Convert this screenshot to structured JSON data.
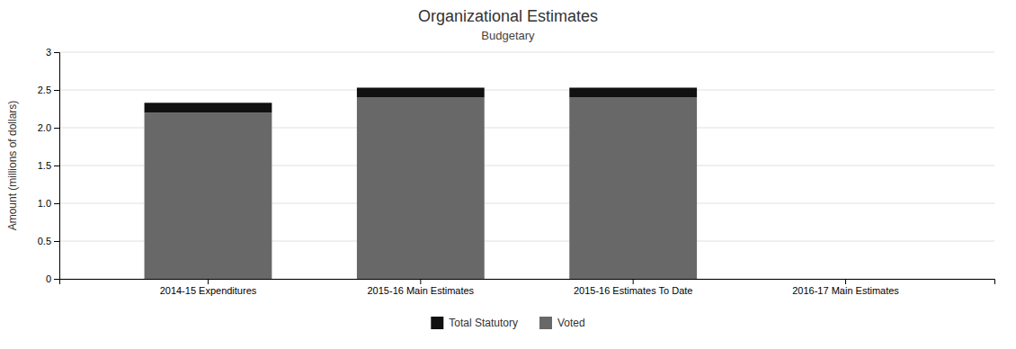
{
  "chart_data": {
    "type": "bar",
    "stacked": true,
    "title": "Organizational Estimates",
    "subtitle": "Budgetary",
    "categories": [
      "2014-15 Expenditures",
      "2015-16 Main Estimates",
      "2015-16 Estimates To Date",
      "2016-17 Main Estimates"
    ],
    "series": [
      {
        "name": "Voted",
        "color": "#686868",
        "values": [
          2.2,
          2.4,
          2.4,
          0.0
        ]
      },
      {
        "name": "Total Statutory",
        "color": "#111111",
        "values": [
          0.13,
          0.13,
          0.13,
          0.0
        ]
      }
    ],
    "ylabel": "Amount (millions of dollars)",
    "ylim": [
      0,
      3
    ],
    "yticks": [
      0,
      0.5,
      {
        "value": 1,
        "label": "1.0"
      },
      1.5,
      {
        "value": 2,
        "label": "2.0"
      },
      2.5,
      3
    ],
    "grid": true,
    "legend": "bottom"
  }
}
